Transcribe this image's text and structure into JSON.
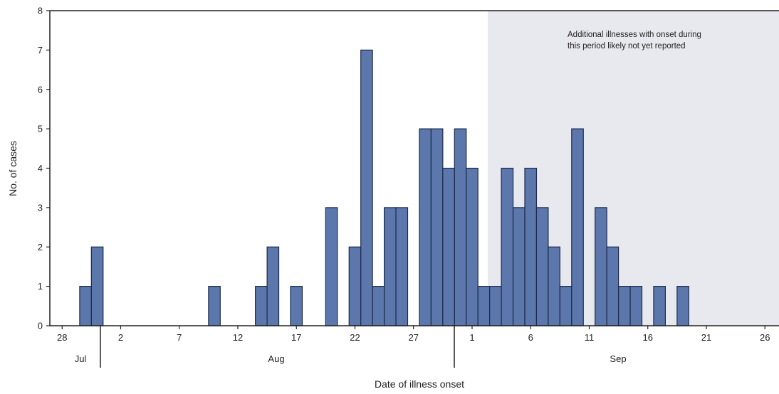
{
  "chart_data": {
    "type": "bar",
    "xlabel": "Date of illness onset",
    "ylabel": "No. of cases",
    "ylim": [
      0,
      8
    ],
    "yticks": [
      0,
      1,
      2,
      3,
      4,
      5,
      6,
      7,
      8
    ],
    "grid": false,
    "x_tick_labels": [
      "28",
      "2",
      "7",
      "12",
      "17",
      "22",
      "27",
      "1",
      "6",
      "11",
      "16",
      "21",
      "26"
    ],
    "months": [
      "Jul",
      "Aug",
      "Sep"
    ],
    "annotation": {
      "line1": "Additional illnesses with onset during",
      "line2": "this period likely not yet reported"
    },
    "x": [
      "Jul 30",
      "Jul 31",
      "Aug 10",
      "Aug 14",
      "Aug 15",
      "Aug 17",
      "Aug 20",
      "Aug 22",
      "Aug 23",
      "Aug 24",
      "Aug 25",
      "Aug 26",
      "Aug 28",
      "Aug 29",
      "Aug 30",
      "Aug 31",
      "Sep 1",
      "Sep 2",
      "Sep 3",
      "Sep 4",
      "Sep 5",
      "Sep 6",
      "Sep 7",
      "Sep 8",
      "Sep 9",
      "Sep 10",
      "Sep 12",
      "Sep 13",
      "Sep 14",
      "Sep 15",
      "Sep 17",
      "Sep 19"
    ],
    "values": [
      1,
      2,
      1,
      1,
      2,
      1,
      3,
      2,
      7,
      1,
      3,
      3,
      5,
      5,
      4,
      5,
      4,
      1,
      1,
      4,
      3,
      4,
      3,
      2,
      1,
      5,
      3,
      2,
      1,
      1,
      1,
      1
    ],
    "colors": {
      "bar": "#5b77ac",
      "bar_stroke": "#1d2a4a",
      "shaded_region": "#e8e8ef",
      "axis": "#222222"
    }
  }
}
